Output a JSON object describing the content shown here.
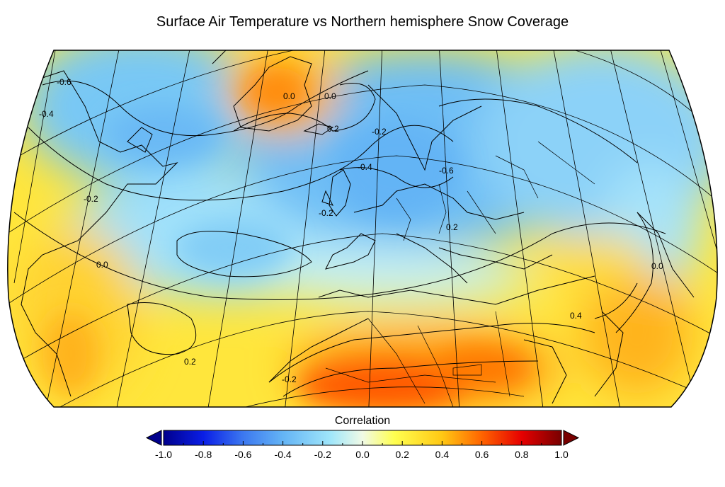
{
  "title": "Surface Air Temperature vs Northern hemisphere Snow Coverage",
  "colorbar": {
    "label": "Correlation",
    "ticks": [
      "-1.0",
      "-0.8",
      "-0.6",
      "-0.4",
      "-0.2",
      "0.0",
      "0.2",
      "0.4",
      "0.6",
      "0.8",
      "1.0"
    ],
    "range": [
      -1.0,
      1.0
    ],
    "extend": "both",
    "colors": [
      "#00008c",
      "#0a1ee6",
      "#3c78f0",
      "#64b4f5",
      "#a0e6fa",
      "#f0fae6",
      "#ffff50",
      "#ffc814",
      "#ff6400",
      "#e60000",
      "#780000"
    ]
  },
  "contour_labels": [
    "-0.6",
    "-0.4",
    "0.0",
    "0.2",
    "-0.2",
    "-0.2",
    "-0.4",
    "0.0",
    "-0.6",
    "-0.2",
    "0.0",
    "0.2",
    "-0.2",
    "0.4",
    "0.0",
    "0.2"
  ],
  "projection": "Robinson, North Atlantic / Europe / North Africa region"
}
